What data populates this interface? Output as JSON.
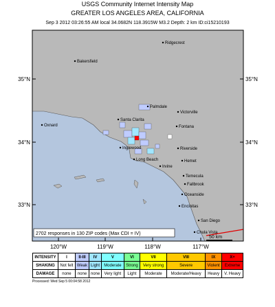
{
  "header": {
    "title": "USGS Community Internet Intensity Map",
    "region": "GREATER LOS ANGELES AREA, CALIFORNIA",
    "details": "Sep 3 2012 03:26:55 AM local 34.0682N 118.3915W M3.2 Depth: 2 km ID:ci15210193"
  },
  "map": {
    "cities": [
      "Ridgecrest",
      "Bakersfield",
      "Palmdale",
      "Victorville",
      "Santa Clarita",
      "Oxnard",
      "Fontana",
      "Riverside",
      "Inglewood",
      "Long Beach",
      "Irvine",
      "Hemet",
      "Temecula",
      "Fallbrook",
      "Oceanside",
      "Encinitas",
      "San Diego",
      "Chula Vista"
    ],
    "lat_labels": [
      "35°N",
      "34°N",
      "33°N"
    ],
    "lon_labels": [
      "120°W",
      "119°W",
      "118°W",
      "117°W"
    ],
    "scale": "50 km",
    "note": "2702 responses in 130 ZIP codes (Max CDI = IV)"
  },
  "legend": {
    "row_labels": [
      "INTENSITY",
      "SHAKING",
      "DAMAGE"
    ],
    "intensity": [
      "I",
      "II-III",
      "IV",
      "V",
      "VI",
      "VII",
      "VIII",
      "IX",
      "X+"
    ],
    "colors": [
      "#ffffff",
      "#bfccff",
      "#a0e6ff",
      "#80ffff",
      "#7aff93",
      "#ffff00",
      "#ffc800",
      "#ff9100",
      "#ff0000"
    ],
    "shaking": [
      "Not felt",
      "Weak",
      "Light",
      "Moderate",
      "Strong",
      "Very strong",
      "Severe",
      "Violent",
      "Extreme"
    ],
    "damage": [
      "none",
      "none",
      "none",
      "Very light",
      "Light",
      "Moderate",
      "Moderate/Heavy",
      "Heavy",
      "V. Heavy"
    ]
  },
  "footer": {
    "processed": "Processed: Wed Sep  5 00:04:58 2012"
  }
}
